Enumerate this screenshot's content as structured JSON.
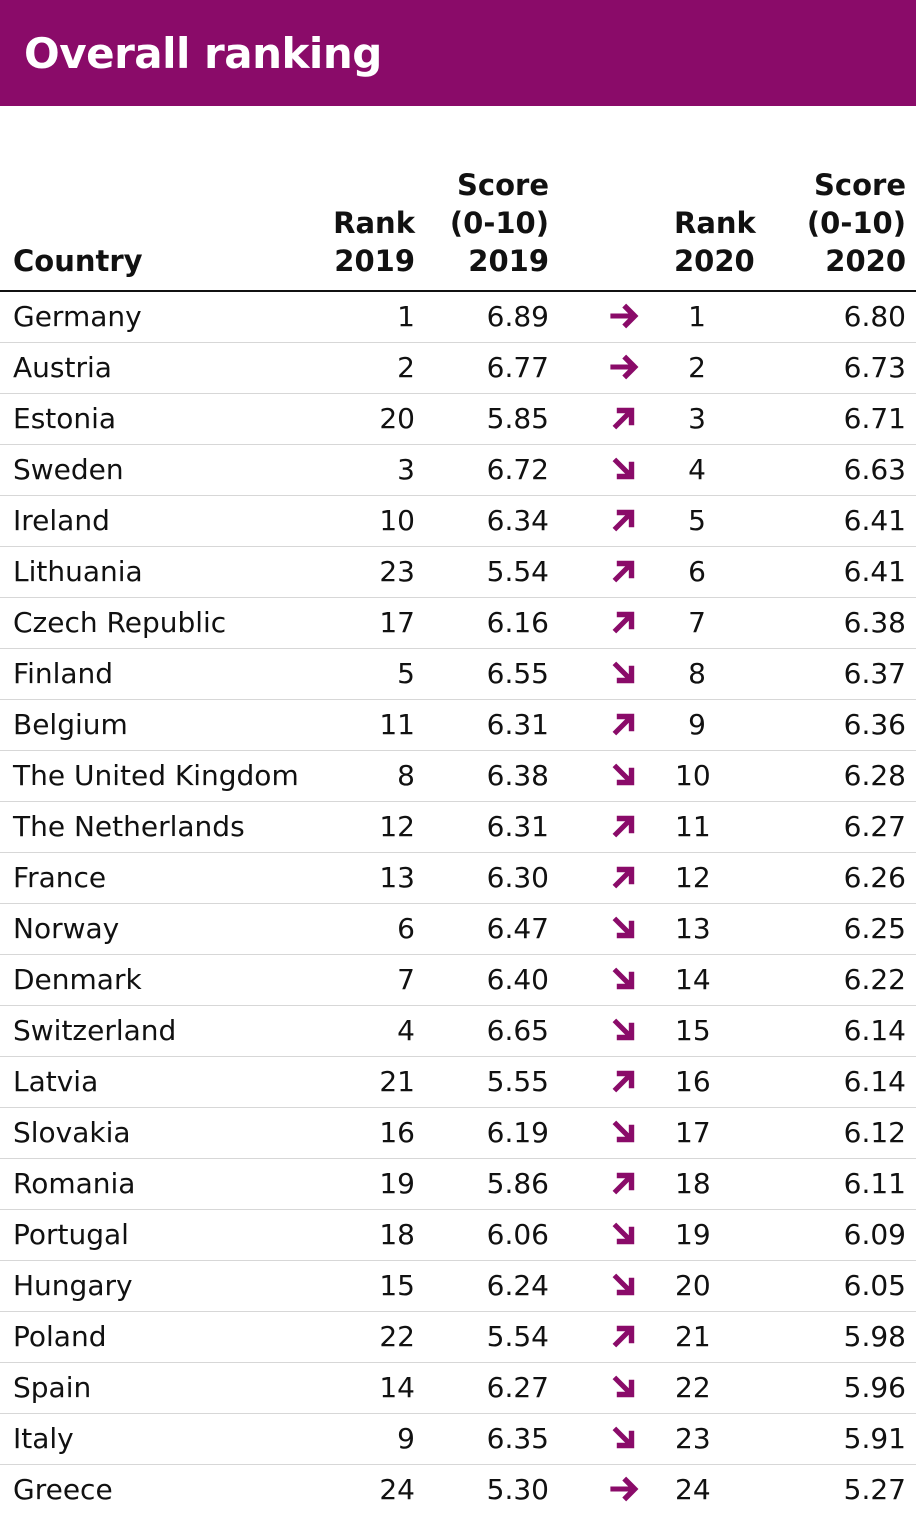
{
  "title": "Overall ranking",
  "colors": {
    "header_background": "#8a0b69",
    "header_text": "#ffffff",
    "arrow": "#8a0b69",
    "rule": "#111111",
    "row_divider": "#d7d7d7"
  },
  "columns": {
    "country": [
      "Country"
    ],
    "rank_2019": [
      "Rank",
      "2019"
    ],
    "score_2019": [
      "Score",
      "(0-10)",
      "2019"
    ],
    "trend": [],
    "rank_2020": [
      "Rank",
      "2020"
    ],
    "score_2020": [
      "Score",
      "(0-10)",
      "2020"
    ]
  },
  "trend_icons": {
    "same": "arrow-right-icon",
    "up": "arrow-up-right-icon",
    "down": "arrow-down-right-icon"
  },
  "chart_data": {
    "type": "table",
    "title": "Overall ranking",
    "columns": [
      "Country",
      "Rank 2019",
      "Score (0-10) 2019",
      "Rank 2020",
      "Score (0-10) 2020"
    ],
    "rows": [
      {
        "country": "Germany",
        "rank_2019": "1",
        "score_2019": "6.89",
        "trend": "same",
        "rank_2020": "1",
        "score_2020": "6.80"
      },
      {
        "country": "Austria",
        "rank_2019": "2",
        "score_2019": "6.77",
        "trend": "same",
        "rank_2020": "2",
        "score_2020": "6.73"
      },
      {
        "country": "Estonia",
        "rank_2019": "20",
        "score_2019": "5.85",
        "trend": "up",
        "rank_2020": "3",
        "score_2020": "6.71"
      },
      {
        "country": "Sweden",
        "rank_2019": "3",
        "score_2019": "6.72",
        "trend": "down",
        "rank_2020": "4",
        "score_2020": "6.63"
      },
      {
        "country": "Ireland",
        "rank_2019": "10",
        "score_2019": "6.34",
        "trend": "up",
        "rank_2020": "5",
        "score_2020": "6.41"
      },
      {
        "country": "Lithuania",
        "rank_2019": "23",
        "score_2019": "5.54",
        "trend": "up",
        "rank_2020": "6",
        "score_2020": "6.41"
      },
      {
        "country": "Czech Republic",
        "rank_2019": "17",
        "score_2019": "6.16",
        "trend": "up",
        "rank_2020": "7",
        "score_2020": "6.38"
      },
      {
        "country": "Finland",
        "rank_2019": "5",
        "score_2019": "6.55",
        "trend": "down",
        "rank_2020": "8",
        "score_2020": "6.37"
      },
      {
        "country": "Belgium",
        "rank_2019": "11",
        "score_2019": "6.31",
        "trend": "up",
        "rank_2020": "9",
        "score_2020": "6.36"
      },
      {
        "country": "The United Kingdom",
        "rank_2019": "8",
        "score_2019": "6.38",
        "trend": "down",
        "rank_2020": "10",
        "score_2020": "6.28"
      },
      {
        "country": "The Netherlands",
        "rank_2019": "12",
        "score_2019": "6.31",
        "trend": "up",
        "rank_2020": "11",
        "score_2020": "6.27"
      },
      {
        "country": "France",
        "rank_2019": "13",
        "score_2019": "6.30",
        "trend": "up",
        "rank_2020": "12",
        "score_2020": "6.26"
      },
      {
        "country": "Norway",
        "rank_2019": "6",
        "score_2019": "6.47",
        "trend": "down",
        "rank_2020": "13",
        "score_2020": "6.25"
      },
      {
        "country": "Denmark",
        "rank_2019": "7",
        "score_2019": "6.40",
        "trend": "down",
        "rank_2020": "14",
        "score_2020": "6.22"
      },
      {
        "country": "Switzerland",
        "rank_2019": "4",
        "score_2019": "6.65",
        "trend": "down",
        "rank_2020": "15",
        "score_2020": "6.14"
      },
      {
        "country": "Latvia",
        "rank_2019": "21",
        "score_2019": "5.55",
        "trend": "up",
        "rank_2020": "16",
        "score_2020": "6.14"
      },
      {
        "country": "Slovakia",
        "rank_2019": "16",
        "score_2019": "6.19",
        "trend": "down",
        "rank_2020": "17",
        "score_2020": "6.12"
      },
      {
        "country": "Romania",
        "rank_2019": "19",
        "score_2019": "5.86",
        "trend": "up",
        "rank_2020": "18",
        "score_2020": "6.11"
      },
      {
        "country": "Portugal",
        "rank_2019": "18",
        "score_2019": "6.06",
        "trend": "down",
        "rank_2020": "19",
        "score_2020": "6.09"
      },
      {
        "country": "Hungary",
        "rank_2019": "15",
        "score_2019": "6.24",
        "trend": "down",
        "rank_2020": "20",
        "score_2020": "6.05"
      },
      {
        "country": "Poland",
        "rank_2019": "22",
        "score_2019": "5.54",
        "trend": "up",
        "rank_2020": "21",
        "score_2020": "5.98"
      },
      {
        "country": "Spain",
        "rank_2019": "14",
        "score_2019": "6.27",
        "trend": "down",
        "rank_2020": "22",
        "score_2020": "5.96"
      },
      {
        "country": "Italy",
        "rank_2019": "9",
        "score_2019": "6.35",
        "trend": "down",
        "rank_2020": "23",
        "score_2020": "5.91"
      },
      {
        "country": "Greece",
        "rank_2019": "24",
        "score_2019": "5.30",
        "trend": "same",
        "rank_2020": "24",
        "score_2020": "5.27"
      }
    ]
  }
}
